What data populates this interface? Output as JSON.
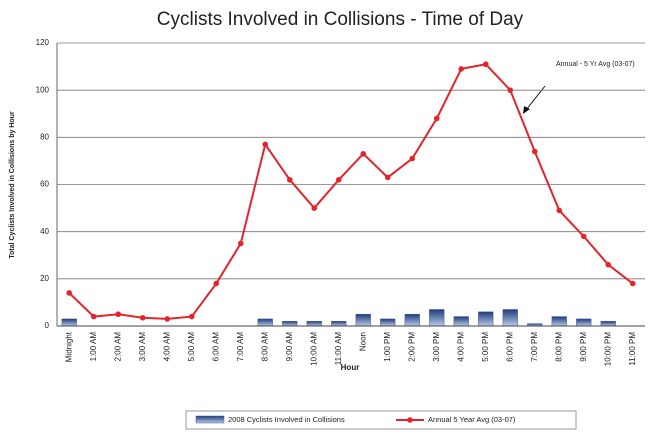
{
  "chart_data": {
    "type": "bar-line",
    "title": "Cyclists Involved in Collisions - Time of Day",
    "x_label": "Hour",
    "y_label": "Total Cyclists Involved in Collisions by Hour",
    "annotation": "Annual - 5 Yr Avg (03-07)",
    "categories": [
      "Midnight",
      "1:00 AM",
      "2:00 AM",
      "3:00 AM",
      "4:00 AM",
      "5:00 AM",
      "6:00 AM",
      "7:00 AM",
      "8:00 AM",
      "9:00 AM",
      "10:00 AM",
      "11:00 AM",
      "Noon",
      "1:00 PM",
      "2:00 PM",
      "3:00 PM",
      "4:00 PM",
      "5:00 PM",
      "6:00 PM",
      "7:00 PM",
      "8:00 PM",
      "9:00 PM",
      "10:00 PM",
      "11:00 PM"
    ],
    "series": [
      {
        "name": "2008 Cyclists Involved in Collisions",
        "type": "bar",
        "color": "#3d5fa3",
        "values": [
          3,
          0,
          0,
          0,
          0,
          0,
          0,
          0,
          3,
          2,
          2,
          2,
          5,
          3,
          5,
          7,
          4,
          6,
          7,
          1,
          4,
          3,
          2,
          0
        ]
      },
      {
        "name": "Annual 5 Year Avg (03-07)",
        "type": "line",
        "color": "#e3252b",
        "values": [
          14,
          4,
          5,
          3.5,
          3,
          4,
          18,
          35,
          77,
          62,
          50,
          62,
          73,
          63,
          71,
          88,
          109,
          111,
          100,
          74,
          49,
          38,
          26,
          18
        ]
      }
    ],
    "ylim": [
      0,
      120
    ],
    "yticks": [
      0,
      20,
      40,
      60,
      80,
      100,
      120
    ],
    "grid": true,
    "legend": "bottom"
  }
}
